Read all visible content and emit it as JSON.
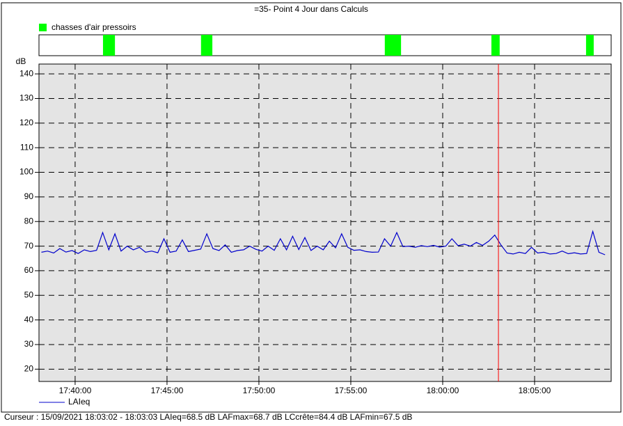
{
  "chart_data": {
    "type": "line",
    "title": "=35- Point 4 Jour dans Calculs",
    "y_label": "dB",
    "events": {
      "name": "chasses d'air pressoirs",
      "color": "#00ff00",
      "ranges": [
        [
          63691,
          63730
        ],
        [
          64011,
          64048
        ],
        [
          64611,
          64664
        ],
        [
          64959,
          64986
        ],
        [
          65268,
          65293
        ]
      ]
    },
    "xlim": [
      63482,
      65350
    ],
    "xticks": [
      {
        "value": 63600,
        "label": "17:40:00"
      },
      {
        "value": 63900,
        "label": "17:45:00"
      },
      {
        "value": 64200,
        "label": "17:50:00"
      },
      {
        "value": 64500,
        "label": "17:55:00"
      },
      {
        "value": 64800,
        "label": "18:00:00"
      },
      {
        "value": 65100,
        "label": "18:05:00"
      }
    ],
    "ylim": [
      15,
      144
    ],
    "yticks": [
      20,
      30,
      40,
      50,
      60,
      70,
      80,
      90,
      100,
      110,
      120,
      130,
      140
    ],
    "grid": true,
    "cursor_x": 64982,
    "cursor_color": "#ff0000",
    "x": [
      63490,
      63510,
      63530,
      63550,
      63570,
      63590,
      63610,
      63630,
      63650,
      63670,
      63690,
      63710,
      63730,
      63750,
      63770,
      63790,
      63810,
      63830,
      63850,
      63870,
      63890,
      63910,
      63930,
      63950,
      63970,
      63990,
      64010,
      64030,
      64050,
      64070,
      64090,
      64110,
      64130,
      64150,
      64170,
      64190,
      64210,
      64230,
      64250,
      64270,
      64290,
      64310,
      64330,
      64350,
      64370,
      64390,
      64410,
      64430,
      64450,
      64470,
      64490,
      64510,
      64530,
      64550,
      64570,
      64590,
      64610,
      64630,
      64650,
      64670,
      64690,
      64710,
      64730,
      64750,
      64770,
      64790,
      64810,
      64830,
      64850,
      64870,
      64890,
      64910,
      64930,
      64950,
      64970,
      64990,
      65010,
      65030,
      65050,
      65070,
      65090,
      65110,
      65130,
      65150,
      65170,
      65190,
      65210,
      65230,
      65250,
      65270,
      65290,
      65310,
      65330
    ],
    "series": [
      {
        "name": "LAIeq",
        "color": "#0000cc",
        "values": [
          67.5,
          68,
          67.2,
          69,
          67.6,
          68.2,
          67,
          68.5,
          67.8,
          68.3,
          75.5,
          68.5,
          75,
          68,
          70,
          68.5,
          69.5,
          67.5,
          68,
          67.3,
          73,
          67.5,
          68,
          72.5,
          67.8,
          68.3,
          68.8,
          75,
          69,
          68.2,
          70.5,
          67.5,
          68.2,
          68.5,
          70,
          68.7,
          68,
          70,
          68.3,
          73,
          68.5,
          74,
          68.6,
          73.5,
          68.2,
          70,
          68.5,
          72,
          69.3,
          75,
          69.5,
          68.3,
          68.5,
          67.8,
          67.5,
          67.6,
          73,
          70,
          75.5,
          69.8,
          70,
          69.5,
          70.2,
          69.8,
          70.3,
          69.6,
          70,
          73,
          70.2,
          70.8,
          70,
          71.5,
          70.3,
          72,
          74.5,
          70.5,
          67.2,
          66.8,
          67.5,
          67,
          69.5,
          67.2,
          67.5,
          66.8,
          67,
          68,
          66.9,
          67.3,
          66.8,
          67,
          76,
          67.5,
          66.5
        ]
      }
    ],
    "footer": "Curseur : 15/09/2021 18:03:02 - 18:03:03  LAIeq=68.5 dB  LAFmax=68.7 dB  LCcrête=84.4 dB  LAFmin=67.5 dB"
  }
}
